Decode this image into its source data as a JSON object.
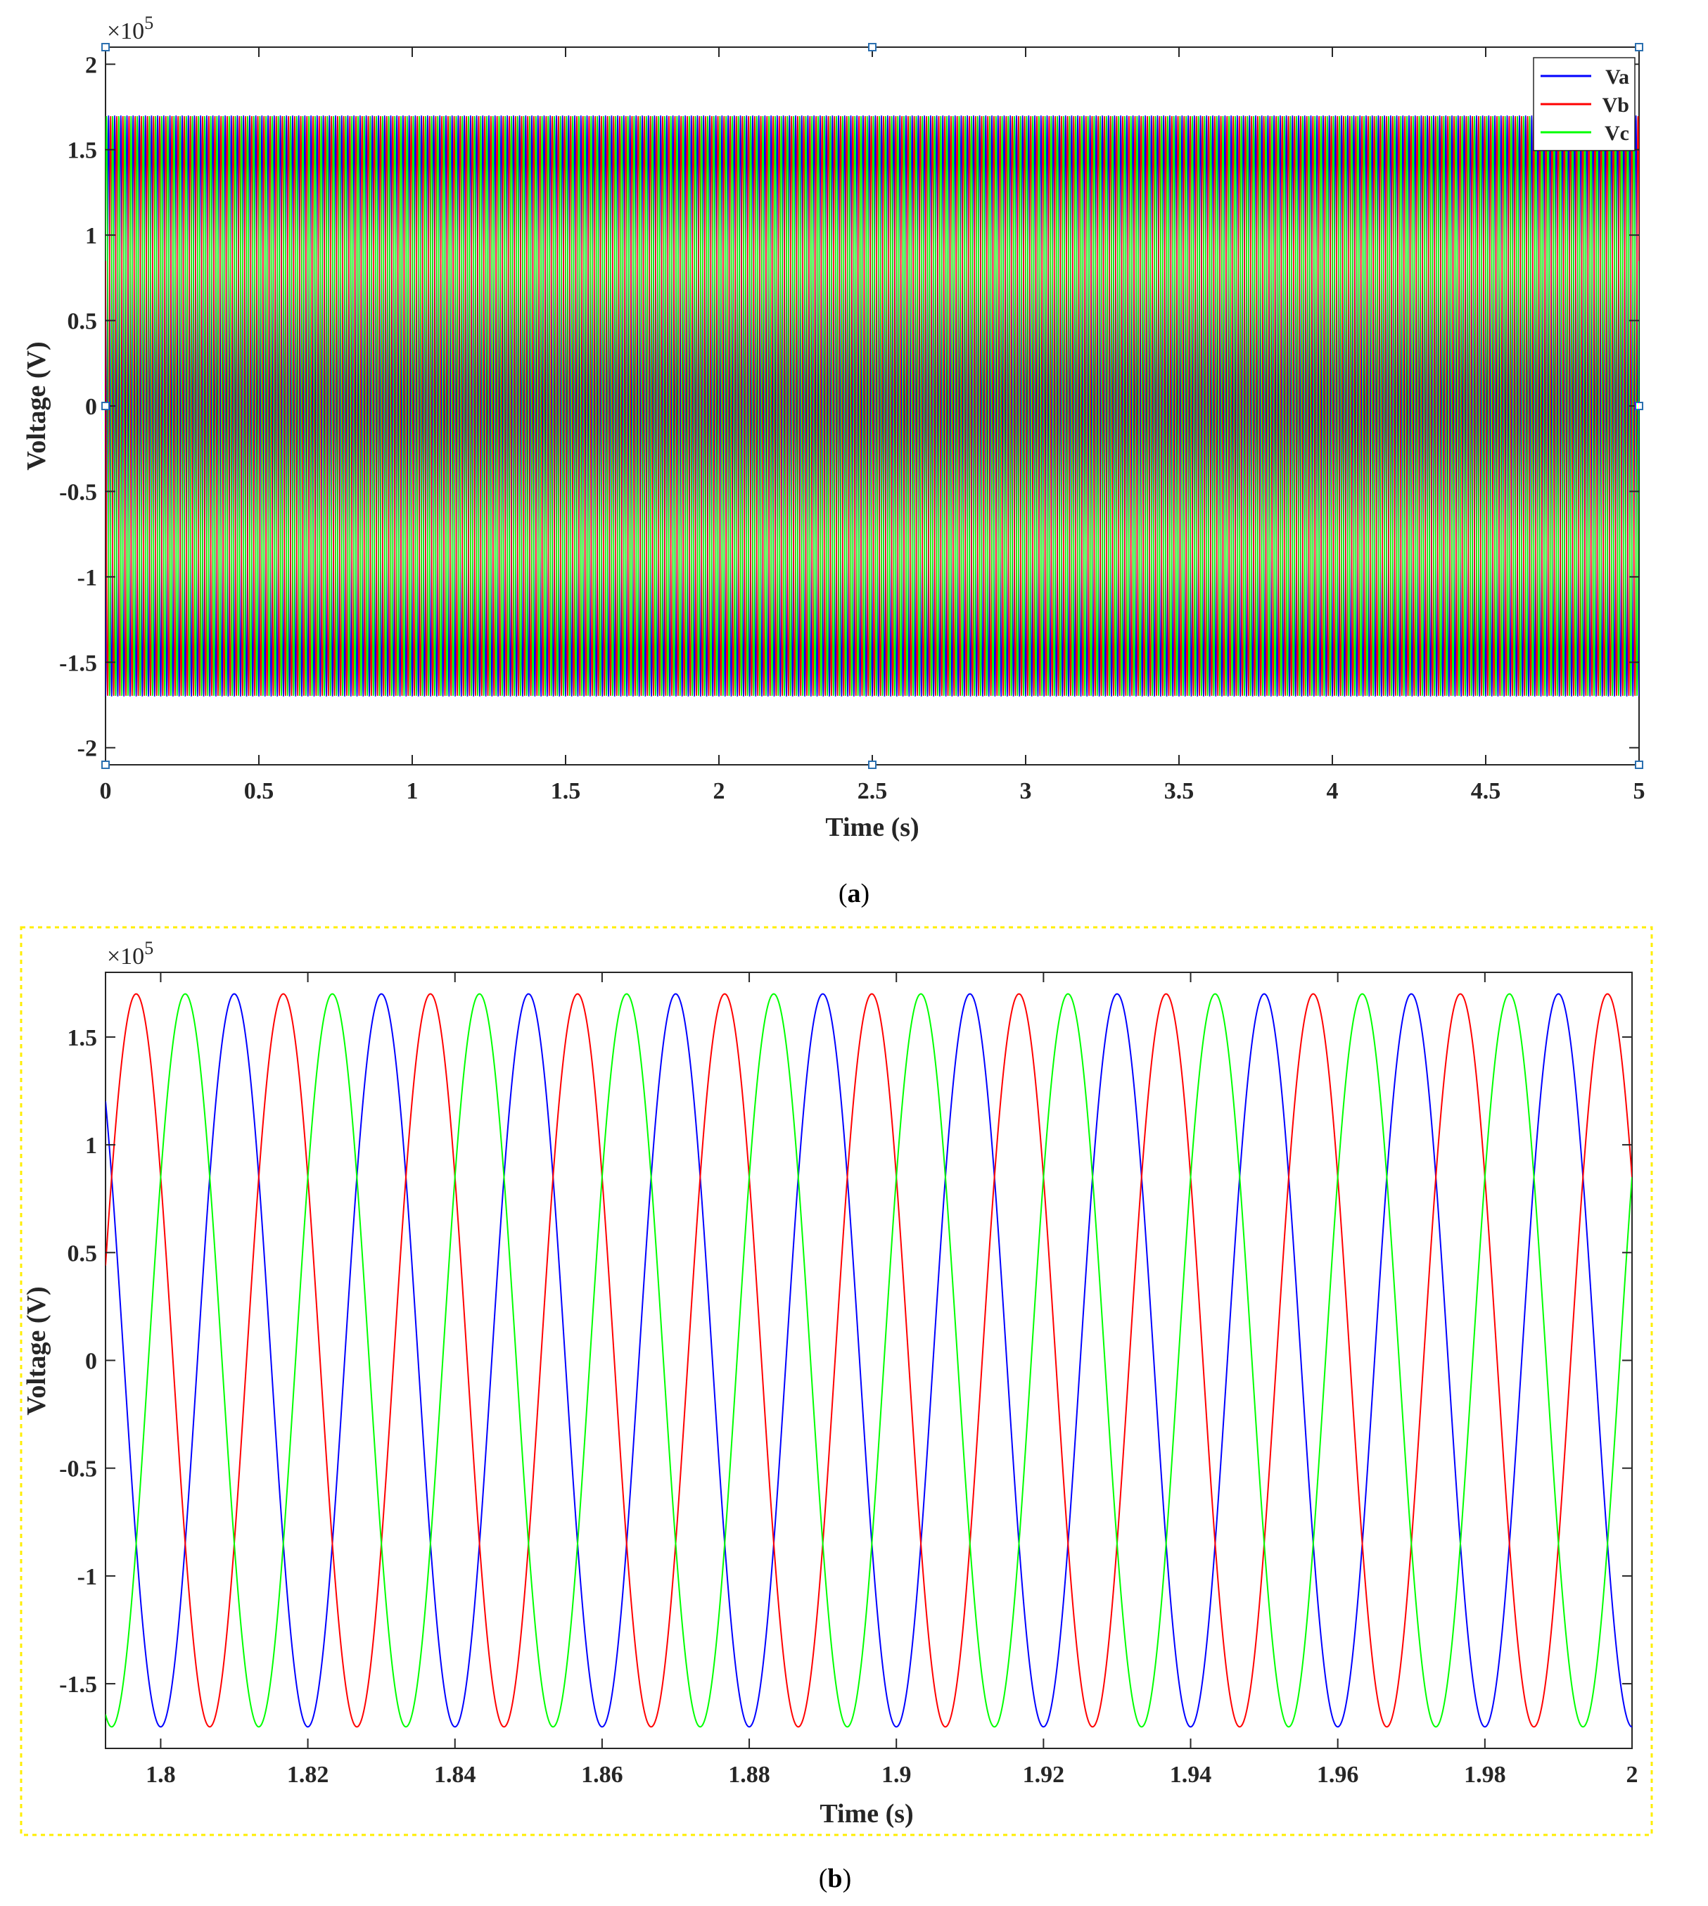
{
  "colors": {
    "Va": "#0000ff",
    "Vb": "#ff0000",
    "Vc": "#00ff00",
    "selection_border": "#ffee00"
  },
  "chart_data": [
    {
      "type": "line",
      "panel": "a",
      "caption": {
        "open": "(",
        "letter": "a",
        "close": ")"
      },
      "xlabel": "Time (s)",
      "ylabel": "Voltage (V)",
      "y_multiplier": "×10",
      "y_multiplier_exp": "5",
      "xlim": [
        0,
        5
      ],
      "ylim": [
        -2.1,
        2.1
      ],
      "x_ticks": [
        0,
        0.5,
        1,
        1.5,
        2,
        2.5,
        3,
        3.5,
        4,
        4.5,
        5
      ],
      "x_tick_labels": [
        "0",
        "0.5",
        "1",
        "1.5",
        "2",
        "2.5",
        "3",
        "3.5",
        "4",
        "4.5",
        "5"
      ],
      "y_ticks": [
        -2,
        -1.5,
        -1,
        -0.5,
        0,
        0.5,
        1,
        1.5,
        2
      ],
      "y_tick_labels": [
        "-2",
        "-1.5",
        "-1",
        "-0.5",
        "0",
        "0.5",
        "1",
        "1.5",
        "2"
      ],
      "legend": {
        "position": "top-right",
        "entries": [
          "Va",
          "Vb",
          "Vc"
        ]
      },
      "series": [
        {
          "name": "Va",
          "amplitude": 1.7,
          "frequency_hz": 50,
          "phase_deg": -90
        },
        {
          "name": "Vb",
          "amplitude": 1.7,
          "frequency_hz": 50,
          "phase_deg": 150
        },
        {
          "name": "Vc",
          "amplitude": 1.7,
          "frequency_hz": 50,
          "phase_deg": 30
        }
      ]
    },
    {
      "type": "line",
      "panel": "b",
      "caption": {
        "open": "(",
        "letter": "b",
        "close": ")"
      },
      "xlabel": "Time (s)",
      "ylabel": "Voltage (V)",
      "y_multiplier": "×10",
      "y_multiplier_exp": "5",
      "xlim": [
        1.7925,
        2.0
      ],
      "ylim": [
        -1.8,
        1.8
      ],
      "x_ticks": [
        1.8,
        1.82,
        1.84,
        1.86,
        1.88,
        1.9,
        1.92,
        1.94,
        1.96,
        1.98,
        2
      ],
      "x_tick_labels": [
        "1.8",
        "1.82",
        "1.84",
        "1.86",
        "1.88",
        "1.9",
        "1.92",
        "1.94",
        "1.96",
        "1.98",
        "2"
      ],
      "y_ticks": [
        -1.5,
        -1,
        -0.5,
        0,
        0.5,
        1,
        1.5
      ],
      "y_tick_labels": [
        "-1.5",
        "-1",
        "-0.5",
        "0",
        "0.5",
        "1",
        "1.5"
      ],
      "series": [
        {
          "name": "Va",
          "amplitude": 1.7,
          "frequency_hz": 50,
          "phase_deg": -90
        },
        {
          "name": "Vb",
          "amplitude": 1.7,
          "frequency_hz": 50,
          "phase_deg": 150
        },
        {
          "name": "Vc",
          "amplitude": 1.7,
          "frequency_hz": 50,
          "phase_deg": 30
        }
      ]
    }
  ]
}
